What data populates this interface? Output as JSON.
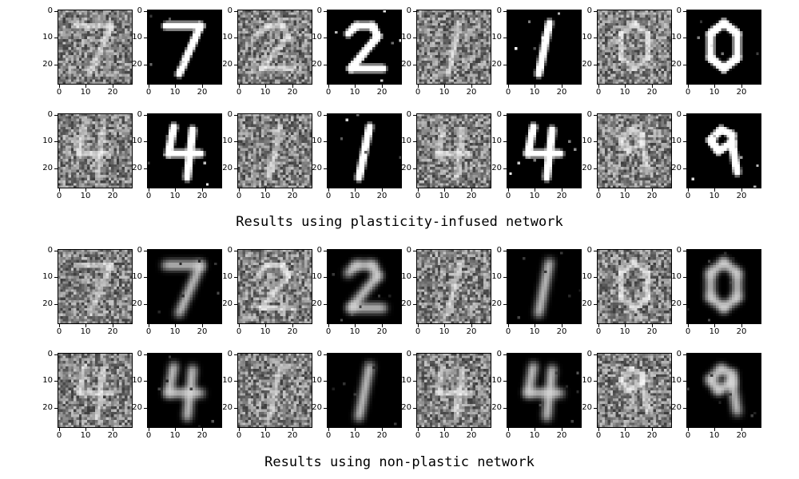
{
  "axis_ticks": {
    "y": [
      "0",
      "10",
      "20"
    ],
    "x": [
      "0",
      "10",
      "20"
    ]
  },
  "sections": [
    {
      "caption": "Results using plasticity-infused network",
      "rows": [
        {
          "digits": [
            "7",
            "7",
            "2",
            "2",
            "1",
            "1",
            "0",
            "0"
          ]
        },
        {
          "digits": [
            "4",
            "4",
            "1",
            "1",
            "4",
            "4",
            "9",
            "9"
          ]
        }
      ],
      "style": "sharp"
    },
    {
      "caption": "Results using non-plastic network",
      "rows": [
        {
          "digits": [
            "7",
            "7",
            "2",
            "2",
            "1",
            "1",
            "0",
            "0"
          ]
        },
        {
          "digits": [
            "4",
            "4",
            "1",
            "1",
            "4",
            "4",
            "9",
            "9"
          ]
        }
      ],
      "style": "blurry"
    }
  ],
  "panel_kinds": [
    "noisy-input",
    "reconstruction"
  ]
}
